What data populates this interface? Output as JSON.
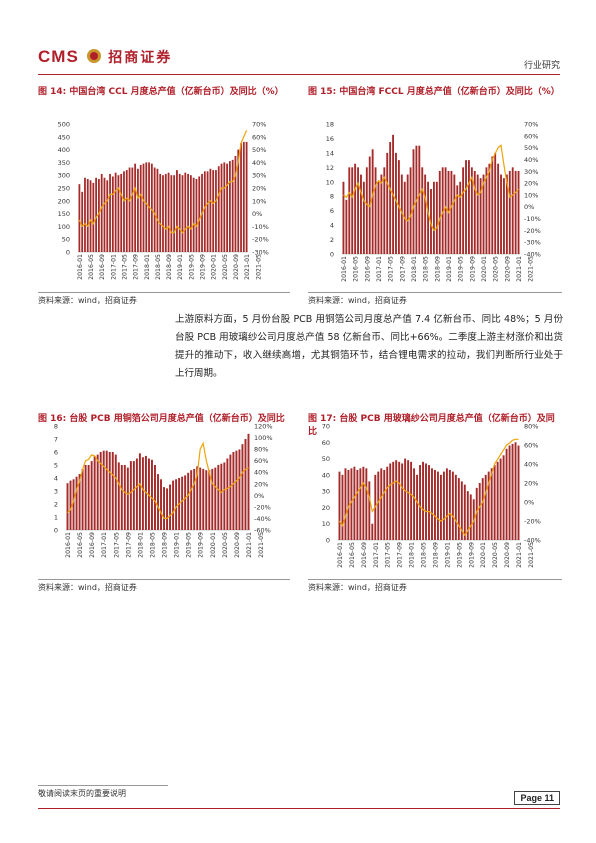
{
  "header": {
    "logo": "CMS",
    "logo_cn": "招商证券",
    "section": "行业研究"
  },
  "body_paragraph": "上游原料方面，5 月份台股 PCB 用铜箔公司月度总产值 7.4 亿新台币、同比 48%；5 月份台股 PCB 用玻璃纱公司月度总产值 58 亿新台币、同比+66%。二季度上游主材涨价和出货提升的推动下，收入继续高增，尤其铜箔环节，结合锂电需求的拉动，我们判断所行业处于上行周期。",
  "footer": {
    "note": "敬请阅读末页的重要说明",
    "page": "Page 11"
  },
  "colors": {
    "bar": "#a52a2a",
    "line": "#f0a30a",
    "accent": "#b0202a"
  },
  "chart_data": [
    {
      "id": "fig14",
      "figure_title": "图 14:  中国台湾 CCL 月度总产值（亿新台币）及同比（%）",
      "source": "资料来源：wind，招商证券",
      "type": "bar",
      "xticks": [
        "2016-01",
        "2016-05",
        "2016-09",
        "2017-01",
        "2017-05",
        "2017-09",
        "2018-01",
        "2018-05",
        "2018-09",
        "2019-01",
        "2019-05",
        "2019-09",
        "2020-01",
        "2020-05",
        "2020-09",
        "2021-01",
        "2021-05"
      ],
      "yticks_left": [
        "0",
        "50",
        "100",
        "150",
        "200",
        "250",
        "300",
        "350",
        "400",
        "450",
        "500"
      ],
      "yticks_right": [
        "-30%",
        "-20%",
        "-10%",
        "0%",
        "10%",
        "20%",
        "30%",
        "40%",
        "50%",
        "60%",
        "70%"
      ],
      "ylim": [
        0,
        500
      ],
      "y2lim": [
        -30,
        70
      ],
      "values": [
        265,
        235,
        290,
        285,
        280,
        270,
        290,
        285,
        305,
        290,
        280,
        305,
        295,
        310,
        300,
        305,
        315,
        320,
        330,
        330,
        345,
        325,
        340,
        345,
        350,
        350,
        345,
        330,
        325,
        305,
        300,
        305,
        310,
        300,
        300,
        320,
        305,
        300,
        310,
        305,
        300,
        290,
        285,
        295,
        305,
        315,
        315,
        325,
        320,
        320,
        335,
        345,
        350,
        345,
        355,
        360,
        375,
        400,
        425,
        430,
        430
      ],
      "yoy": [
        -5,
        -10,
        -8,
        -10,
        -5,
        -8,
        -3,
        0,
        5,
        8,
        10,
        15,
        15,
        18,
        20,
        15,
        10,
        12,
        10,
        15,
        20,
        12,
        15,
        10,
        8,
        5,
        3,
        0,
        -5,
        -8,
        -10,
        -12,
        -10,
        -15,
        -15,
        -10,
        -12,
        -15,
        -12,
        -10,
        -12,
        -8,
        -10,
        -5,
        0,
        5,
        8,
        10,
        8,
        10,
        15,
        20,
        20,
        22,
        25,
        25,
        30,
        40,
        55,
        60,
        65
      ]
    },
    {
      "id": "fig15",
      "figure_title": "图 15:  中国台湾 FCCL 月度总产值（亿新台币）及同比（%）",
      "source": "资料来源：wind，招商证券",
      "type": "bar",
      "xticks": [
        "2016-01",
        "2016-05",
        "2016-09",
        "2017-01",
        "2017-05",
        "2017-09",
        "2018-01",
        "2018-05",
        "2018-09",
        "2019-01",
        "2019-05",
        "2019-09",
        "2020-01",
        "2020-05",
        "2020-09",
        "2021-01",
        "2021-05"
      ],
      "yticks_left": [
        "0",
        "2",
        "4",
        "6",
        "8",
        "10",
        "12",
        "14",
        "16",
        "18"
      ],
      "yticks_right": [
        "-40%",
        "-30%",
        "-20%",
        "-10%",
        "0%",
        "10%",
        "20%",
        "30%",
        "40%",
        "50%",
        "60%",
        "70%"
      ],
      "ylim": [
        0,
        18
      ],
      "y2lim": [
        -40,
        70
      ],
      "values": [
        10,
        7.5,
        12,
        12,
        12.5,
        12,
        11,
        10,
        12,
        13.5,
        14.5,
        12,
        10,
        11,
        12,
        14,
        15.5,
        16.5,
        14,
        13,
        11,
        10,
        11,
        12,
        14.5,
        15,
        15,
        12,
        11,
        10,
        9,
        10,
        10,
        11.5,
        12,
        12,
        11.5,
        11.5,
        11,
        9.5,
        10,
        12,
        13,
        13,
        12,
        11.5,
        11,
        10.5,
        11,
        12,
        12.5,
        13.5,
        14,
        12.5,
        11,
        10.5,
        11,
        11.5,
        12,
        11.5,
        11.5
      ],
      "yoy": [
        10,
        8,
        12,
        8,
        15,
        20,
        12,
        5,
        2,
        0,
        10,
        18,
        22,
        20,
        25,
        20,
        15,
        10,
        5,
        0,
        -5,
        -10,
        -12,
        -8,
        0,
        5,
        10,
        15,
        8,
        -5,
        -15,
        -20,
        -18,
        -10,
        -5,
        0,
        -5,
        0,
        5,
        10,
        8,
        12,
        15,
        20,
        25,
        15,
        10,
        12,
        20,
        25,
        30,
        40,
        45,
        50,
        52,
        35,
        20,
        8,
        10,
        12,
        15
      ]
    },
    {
      "id": "fig16",
      "figure_title": "图 16:  台股 PCB 用铜箔公司月度总产值（亿新台币）及同比",
      "source": "资料来源：wind，招商证券",
      "type": "bar",
      "xticks": [
        "2016-01",
        "2016-05",
        "2016-09",
        "2017-01",
        "2017-05",
        "2017-09",
        "2018-01",
        "2018-05",
        "2018-09",
        "2019-01",
        "2019-05",
        "2019-09",
        "2020-01",
        "2020-05",
        "2020-09",
        "2021-01",
        "2021-05"
      ],
      "yticks_left": [
        "0",
        "1",
        "2",
        "3",
        "4",
        "5",
        "6",
        "7",
        "8"
      ],
      "yticks_right": [
        "-60%",
        "-40%",
        "-20%",
        "0%",
        "20%",
        "40%",
        "60%",
        "80%",
        "100%",
        "120%"
      ],
      "ylim": [
        0,
        8
      ],
      "y2lim": [
        -60,
        120
      ],
      "values": [
        3.6,
        3.8,
        3.9,
        4.1,
        4.3,
        4.7,
        5,
        5,
        5.3,
        5.7,
        5.8,
        6,
        6.1,
        6.1,
        6,
        6,
        5.8,
        5.2,
        5,
        5,
        4.8,
        5.3,
        5.3,
        5.5,
        5.9,
        5.6,
        5.7,
        5.5,
        5.4,
        5,
        4.3,
        3.9,
        3.3,
        3.2,
        3.5,
        3.8,
        3.9,
        4,
        4.1,
        4.2,
        4.4,
        4.6,
        4.7,
        4.9,
        4.8,
        4.7,
        4.6,
        4.6,
        4.7,
        4.8,
        5,
        5.1,
        5.2,
        5.5,
        5.8,
        6,
        6.1,
        6.2,
        6.6,
        7,
        7.4
      ],
      "yoy": [
        -30,
        -25,
        -10,
        10,
        25,
        45,
        60,
        62,
        70,
        68,
        60,
        55,
        50,
        45,
        40,
        35,
        30,
        20,
        10,
        5,
        2,
        5,
        10,
        15,
        20,
        10,
        5,
        0,
        -5,
        -10,
        -20,
        -30,
        -40,
        -40,
        -35,
        -30,
        -20,
        -15,
        -10,
        -5,
        0,
        10,
        20,
        35,
        80,
        90,
        60,
        40,
        20,
        15,
        10,
        5,
        10,
        12,
        15,
        20,
        25,
        30,
        40,
        45,
        48
      ]
    },
    {
      "id": "fig17",
      "figure_title": "图 17:  台股 PCB 用玻璃纱公司月度总产值（亿新台币）及同比",
      "source": "资料来源：wind，招商证券",
      "type": "bar",
      "xticks": [
        "2016-01",
        "2016-05",
        "2016-09",
        "2017-01",
        "2017-05",
        "2017-09",
        "2018-01",
        "2018-05",
        "2018-09",
        "2019-01",
        "2019-05",
        "2019-09",
        "2020-01",
        "2020-05",
        "2020-09",
        "2021-01",
        "2021-05"
      ],
      "yticks_left": [
        "0",
        "10",
        "20",
        "30",
        "40",
        "50",
        "60",
        "70"
      ],
      "yticks_right": [
        "-40%",
        "-20%",
        "0%",
        "20%",
        "40%",
        "60%",
        "80%"
      ],
      "ylim": [
        0,
        70
      ],
      "y2lim": [
        -40,
        80
      ],
      "values": [
        42,
        40,
        44,
        43,
        44,
        45,
        43,
        44,
        45,
        44,
        36,
        10,
        40,
        42,
        44,
        43,
        45,
        47,
        48,
        49,
        48,
        47,
        50,
        49,
        48,
        44,
        40,
        46,
        48,
        47,
        46,
        44,
        43,
        42,
        40,
        42,
        44,
        43,
        42,
        40,
        38,
        36,
        34,
        30,
        28,
        25,
        32,
        35,
        38,
        40,
        42,
        44,
        46,
        48,
        50,
        52,
        56,
        58,
        59,
        60,
        58
      ],
      "yoy": [
        -20,
        -25,
        -15,
        -5,
        0,
        5,
        10,
        15,
        20,
        15,
        5,
        -10,
        -5,
        0,
        5,
        10,
        15,
        18,
        20,
        22,
        20,
        15,
        12,
        10,
        8,
        5,
        0,
        -5,
        -8,
        -10,
        -10,
        -12,
        -15,
        -18,
        -20,
        -18,
        -15,
        -12,
        -15,
        -20,
        -25,
        -30,
        -35,
        -30,
        -25,
        -20,
        -10,
        -5,
        0,
        10,
        20,
        30,
        40,
        45,
        50,
        55,
        60,
        62,
        65,
        66,
        66
      ]
    }
  ]
}
